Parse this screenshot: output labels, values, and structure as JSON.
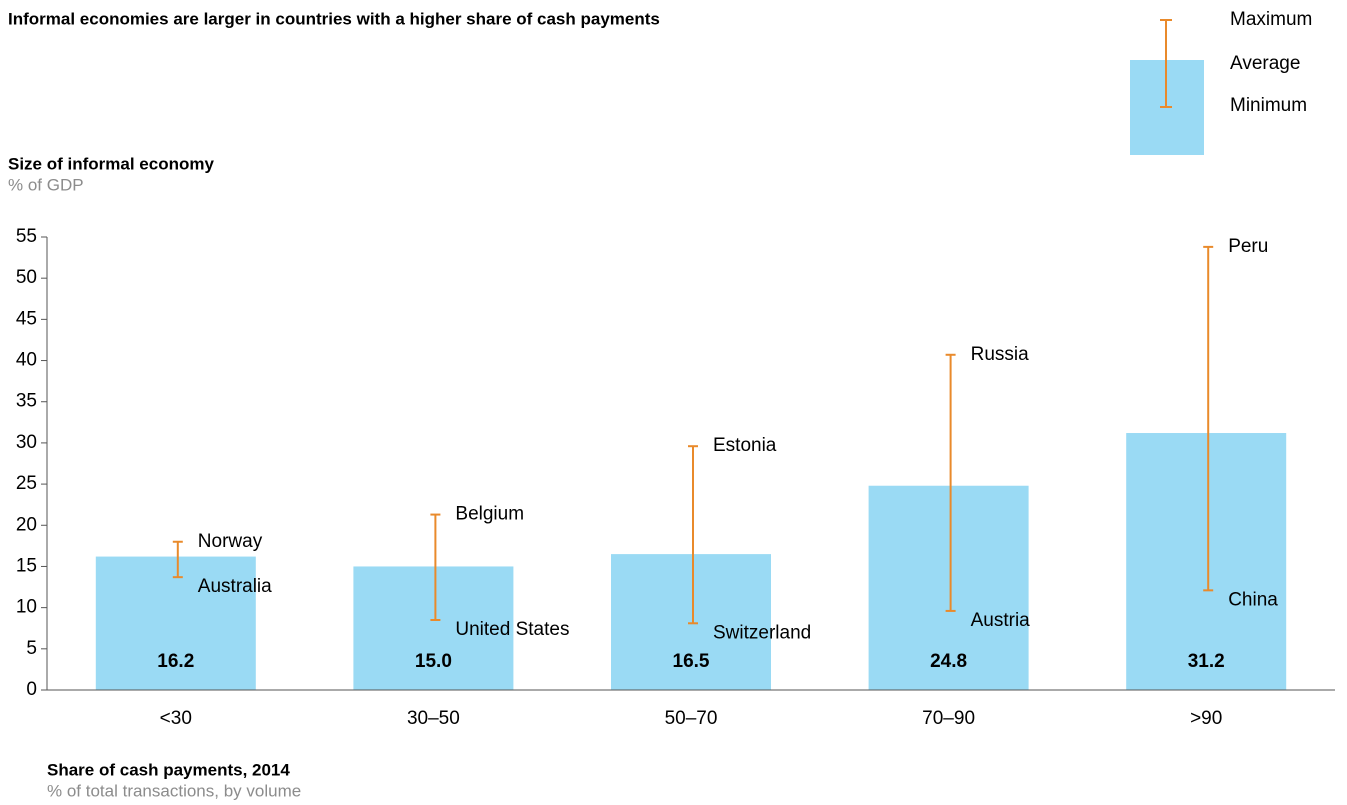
{
  "chart_data": {
    "type": "bar",
    "title": "Informal economies are larger in countries with a higher share of cash payments",
    "y_axis_title": "Size of informal economy",
    "y_axis_subtitle": "% of GDP",
    "x_axis_title": "Share of cash payments, 2014",
    "x_axis_subtitle": "% of total transactions, by volume",
    "categories": [
      "<30",
      "30–50",
      "50–70",
      "70–90",
      ">90"
    ],
    "series": [
      {
        "name": "Average",
        "color": "#9adaf4",
        "values": [
          16.2,
          15.0,
          16.5,
          24.8,
          31.2
        ],
        "value_labels": [
          "16.2",
          "15.0",
          "16.5",
          "24.8",
          "31.2"
        ]
      },
      {
        "name": "Maximum",
        "color": "#e98a2b",
        "values": [
          18.0,
          21.3,
          29.6,
          40.7,
          53.8
        ],
        "labels": [
          "Norway",
          "Belgium",
          "Estonia",
          "Russia",
          "Peru"
        ]
      },
      {
        "name": "Minimum",
        "color": "#e98a2b",
        "values": [
          13.7,
          8.5,
          8.1,
          9.6,
          12.1
        ],
        "labels": [
          "Australia",
          "United States",
          "Switzerland",
          "Austria",
          "China"
        ]
      }
    ],
    "ylim": [
      0,
      55
    ],
    "yticks": [
      0,
      5,
      10,
      15,
      20,
      25,
      30,
      35,
      40,
      45,
      50,
      55
    ],
    "grid": false
  }
}
